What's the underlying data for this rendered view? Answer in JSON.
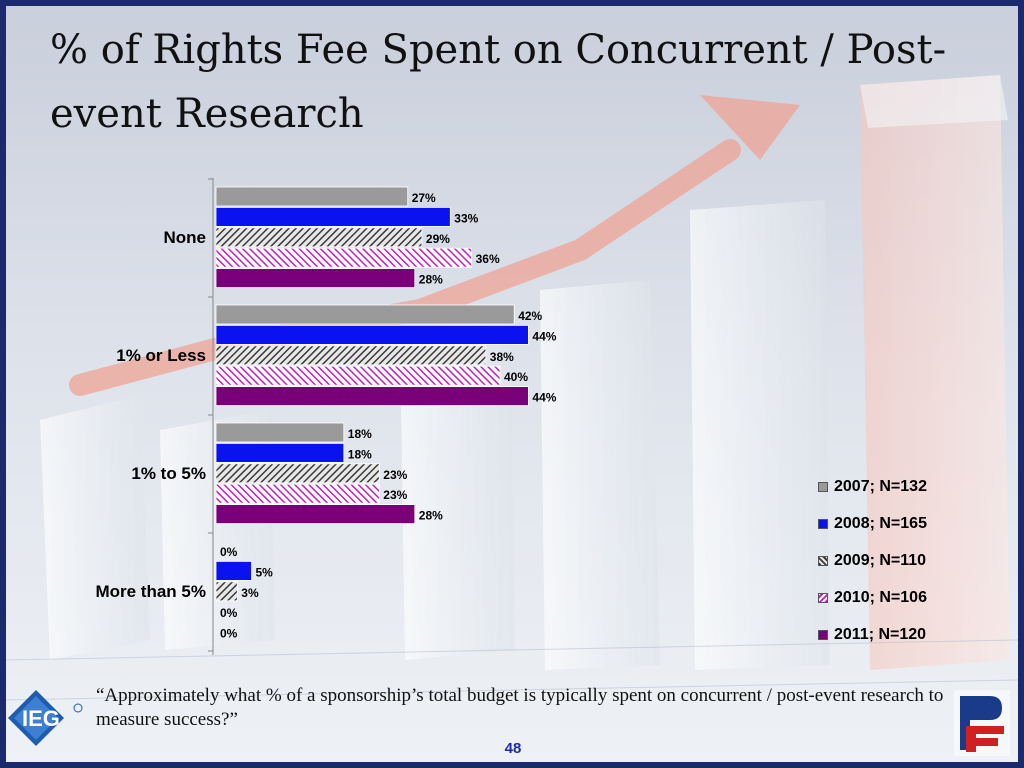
{
  "title": "% of Rights Fee Spent on Concurrent / Post-event Research",
  "chart_data": {
    "type": "bar",
    "orientation": "horizontal",
    "title": "",
    "categories": [
      "None",
      "1% or Less",
      "1% to 5%",
      "More than 5%"
    ],
    "series": [
      {
        "name": "2007; N=132",
        "values": [
          27,
          42,
          18,
          0
        ],
        "labels": [
          "27%",
          "42%",
          "18%",
          "0%"
        ],
        "color": "#9a9a9a",
        "pattern": "solid"
      },
      {
        "name": "2008; N=165",
        "values": [
          33,
          44,
          18,
          5
        ],
        "labels": [
          "33%",
          "44%",
          "18%",
          "5%"
        ],
        "color": "#0a12f0",
        "pattern": "solid"
      },
      {
        "name": "2009; N=110",
        "values": [
          29,
          38,
          23,
          3
        ],
        "labels": [
          "29%",
          "38%",
          "23%",
          "3%"
        ],
        "color": "#4a4a4a",
        "pattern": "hatch-dark"
      },
      {
        "name": "2010; N=106",
        "values": [
          36,
          40,
          23,
          0
        ],
        "labels": [
          "36%",
          "40%",
          "23%",
          "0%"
        ],
        "color": "#c020c0",
        "pattern": "hatch-magenta"
      },
      {
        "name": "2011; N=120",
        "values": [
          28,
          44,
          28,
          0
        ],
        "labels": [
          "28%",
          "44%",
          "28%",
          "0%"
        ],
        "color": "#7a007a",
        "pattern": "solid"
      }
    ],
    "xlim": [
      0,
      100
    ],
    "grid": false,
    "legend_position": "right"
  },
  "question": "“Approximately what % of a sponsorship’s total budget is typically spent on concurrent / post-event research to measure success?”",
  "page_number": "48",
  "logos": {
    "left": "IEG",
    "right": "PF"
  },
  "colors": {
    "frame": "#1a2a6c",
    "background": "#d4dae6",
    "arrow": "#f0a090"
  }
}
